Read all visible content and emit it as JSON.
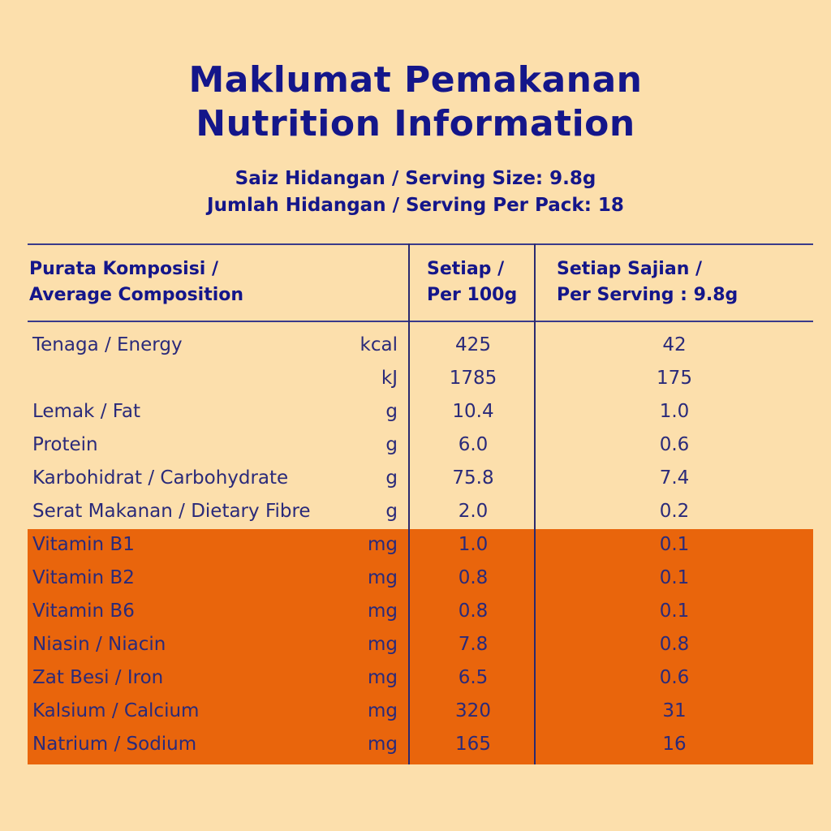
{
  "title": {
    "line1": "Maklumat Pemakanan",
    "line2": "Nutrition Information"
  },
  "serving": {
    "size": "Saiz Hidangan / Serving Size: 9.8g",
    "per_pack": "Jumlah Hidangan / Serving Per Pack: 18"
  },
  "table": {
    "headers": {
      "col1_line1": "Purata Komposisi /",
      "col1_line2": "Average Composition",
      "col2_line1": "Setiap /",
      "col2_line2": "Per 100g",
      "col3_line1": "Setiap Sajian /",
      "col3_line2": "Per Serving : 9.8g"
    },
    "rows": [
      {
        "name": "Tenaga / Energy",
        "unit": "kcal",
        "per100": "425",
        "perServing": "42",
        "highlight": false
      },
      {
        "name": "",
        "unit": "kJ",
        "per100": "1785",
        "perServing": "175",
        "highlight": false
      },
      {
        "name": "Lemak / Fat",
        "unit": "g",
        "per100": "10.4",
        "perServing": "1.0",
        "highlight": false
      },
      {
        "name": "Protein",
        "unit": "g",
        "per100": "6.0",
        "perServing": "0.6",
        "highlight": false
      },
      {
        "name": "Karbohidrat / Carbohydrate",
        "unit": "g",
        "per100": "75.8",
        "perServing": "7.4",
        "highlight": false
      },
      {
        "name": "Serat Makanan / Dietary Fibre",
        "unit": "g",
        "per100": "2.0",
        "perServing": "0.2",
        "highlight": false
      },
      {
        "name": "Vitamin B1",
        "unit": "mg",
        "per100": "1.0",
        "perServing": "0.1",
        "highlight": true
      },
      {
        "name": "Vitamin B2",
        "unit": "mg",
        "per100": "0.8",
        "perServing": "0.1",
        "highlight": true
      },
      {
        "name": "Vitamin B6",
        "unit": "mg",
        "per100": "0.8",
        "perServing": "0.1",
        "highlight": true
      },
      {
        "name": "Niasin / Niacin",
        "unit": "mg",
        "per100": "7.8",
        "perServing": "0.8",
        "highlight": true
      },
      {
        "name": "Zat Besi / Iron",
        "unit": "mg",
        "per100": "6.5",
        "perServing": "0.6",
        "highlight": true
      },
      {
        "name": "Kalsium / Calcium",
        "unit": "mg",
        "per100": "320",
        "perServing": "31",
        "highlight": true
      },
      {
        "name": "Natrium / Sodium",
        "unit": "mg",
        "per100": "165",
        "perServing": "16",
        "highlight": true
      }
    ]
  },
  "colors": {
    "background": "#fcdfac",
    "text": "#14168a",
    "highlight": "#e9650c"
  }
}
